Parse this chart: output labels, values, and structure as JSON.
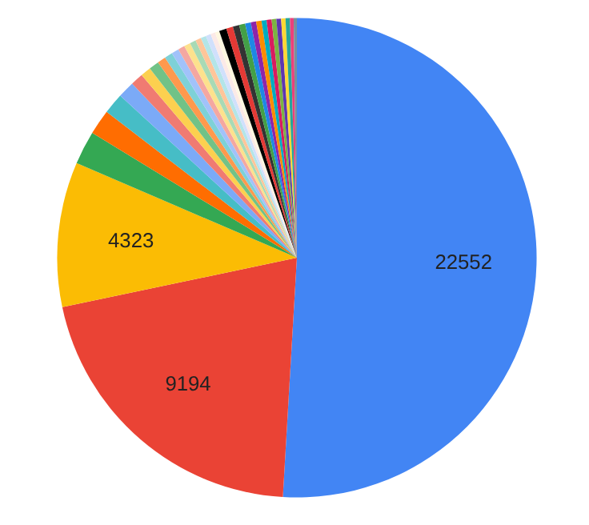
{
  "chart_data": {
    "type": "pie",
    "categories": [
      null,
      null,
      null,
      null,
      null,
      null,
      null,
      null,
      null,
      null,
      null,
      null,
      null,
      null,
      null,
      null,
      null,
      null,
      null,
      null,
      null,
      null,
      null,
      null,
      null,
      null,
      null,
      null,
      null,
      null,
      null,
      null,
      null,
      null,
      null,
      null
    ],
    "values": [
      22552,
      9194,
      4323,
      1000,
      750,
      620,
      500,
      375,
      310,
      300,
      250,
      240,
      220,
      200,
      190,
      180,
      170,
      160,
      150,
      140,
      130,
      220,
      200,
      190,
      180,
      170,
      160,
      160,
      150,
      150,
      140,
      140,
      130,
      130,
      110,
      95
    ],
    "colors": [
      "#4285f4",
      "#ea4335",
      "#fbbc04",
      "#34a853",
      "#ff6d01",
      "#46bdc6",
      "#7baaf7",
      "#f07b72",
      "#fcd04f",
      "#71c287",
      "#ff994d",
      "#7ed1d7",
      "#a1c2fa",
      "#f4a7a1",
      "#fde18d",
      "#a8dab5",
      "#ffc599",
      "#b3e5e8",
      "#d0e0fc",
      "#fbe9e7",
      "#fef7e0",
      "#000000",
      "#e53935",
      "#333333",
      "#43a047",
      "#1e88e5",
      "#8e24aa",
      "#fb8c00",
      "#00acc1",
      "#d81b60",
      "#7cb342",
      "#5e35b1",
      "#fdd835",
      "#26a69a",
      "#ec407a",
      "#78909c"
    ],
    "value_labels": [
      "22552",
      "9194",
      "4323",
      null,
      null,
      null,
      null,
      null,
      null,
      null,
      null,
      null,
      null,
      null,
      null,
      null,
      null,
      null,
      null,
      null,
      null,
      null,
      null,
      null,
      null,
      null,
      null,
      null,
      null,
      null,
      null,
      null,
      null,
      null,
      null,
      null
    ]
  }
}
